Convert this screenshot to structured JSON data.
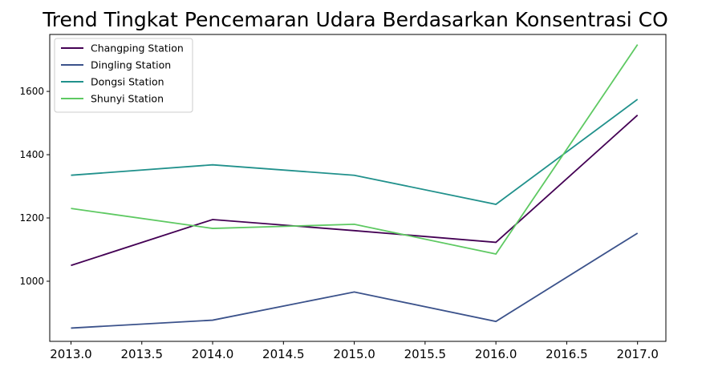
{
  "chart_data": {
    "type": "line",
    "title": "Trend Tingkat Pencemaran Udara Berdasarkan Konsentrasi CO",
    "xlabel": "",
    "ylabel": "",
    "x": [
      2013,
      2014,
      2015,
      2016,
      2017
    ],
    "xlim": [
      2012.85,
      2017.2
    ],
    "ylim": [
      810,
      1780
    ],
    "x_ticks": [
      2013.0,
      2013.5,
      2014.0,
      2014.5,
      2015.0,
      2015.5,
      2016.0,
      2016.5,
      2017.0
    ],
    "x_tick_labels": [
      "2013.0",
      "2013.5",
      "2014.0",
      "2014.5",
      "2015.0",
      "2015.5",
      "2016.0",
      "2016.5",
      "2017.0"
    ],
    "y_ticks": [
      1000,
      1200,
      1400,
      1600
    ],
    "y_tick_labels": [
      "1000",
      "1200",
      "1400",
      "1600"
    ],
    "grid": false,
    "legend_position": "top-left",
    "series": [
      {
        "name": "Changping Station",
        "color": "#440154",
        "values": [
          1050,
          1195,
          1160,
          1123,
          1525
        ]
      },
      {
        "name": "Dingling Station",
        "color": "#3b528b",
        "values": [
          852,
          877,
          966,
          873,
          1152
        ]
      },
      {
        "name": "Dongsi Station",
        "color": "#21918c",
        "values": [
          1335,
          1368,
          1335,
          1243,
          1575
        ]
      },
      {
        "name": "Shunyi Station",
        "color": "#5ec962",
        "values": [
          1230,
          1167,
          1180,
          1086,
          1748
        ]
      }
    ]
  }
}
